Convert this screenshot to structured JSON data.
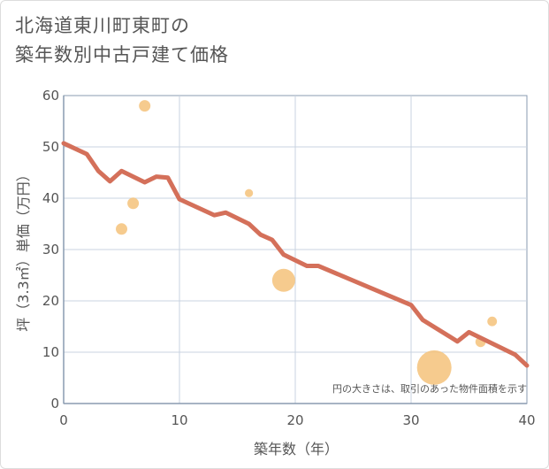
{
  "title_lines": [
    "北海道東川町東町の",
    "築年数別中古戸建て価格"
  ],
  "chart_data": {
    "type": "scatter",
    "title": "北海道東川町東町の築年数別中古戸建て価格",
    "xlabel": "築年数（年）",
    "ylabel": "坪（3.3㎡）単価（万円）",
    "xlim": [
      0,
      40
    ],
    "ylim": [
      0,
      60
    ],
    "xticks": [
      0,
      10,
      20,
      30,
      40
    ],
    "yticks": [
      0,
      10,
      20,
      30,
      40,
      50,
      60
    ],
    "grid": true,
    "note": "円の大きさは、取引のあった物件面積を示す",
    "colors": {
      "line": "#d4705a",
      "bubble": "#f5c27a",
      "grid": "#c9d3e0",
      "axis": "#8a9bb0"
    },
    "trend_line": {
      "x": [
        0,
        2,
        3,
        4,
        5,
        7,
        8,
        9,
        10,
        13,
        14,
        16,
        17,
        18,
        19,
        21,
        22,
        30,
        31,
        34,
        35,
        39,
        40
      ],
      "y": [
        50.7,
        48.6,
        45.3,
        43.3,
        45.3,
        43.1,
        44.2,
        44.0,
        39.8,
        36.7,
        37.2,
        35.0,
        32.9,
        31.9,
        29.0,
        26.8,
        26.8,
        19.2,
        16.3,
        12.1,
        13.9,
        9.5,
        7.4
      ]
    },
    "points": [
      {
        "x": 5,
        "y": 34,
        "size": 1
      },
      {
        "x": 6,
        "y": 39,
        "size": 1
      },
      {
        "x": 7,
        "y": 58,
        "size": 1
      },
      {
        "x": 16,
        "y": 41,
        "size": 0.5
      },
      {
        "x": 19,
        "y": 24,
        "size": 4
      },
      {
        "x": 32,
        "y": 7,
        "size": 9
      },
      {
        "x": 36,
        "y": 12,
        "size": 0.8
      },
      {
        "x": 37,
        "y": 16,
        "size": 0.7
      }
    ]
  }
}
